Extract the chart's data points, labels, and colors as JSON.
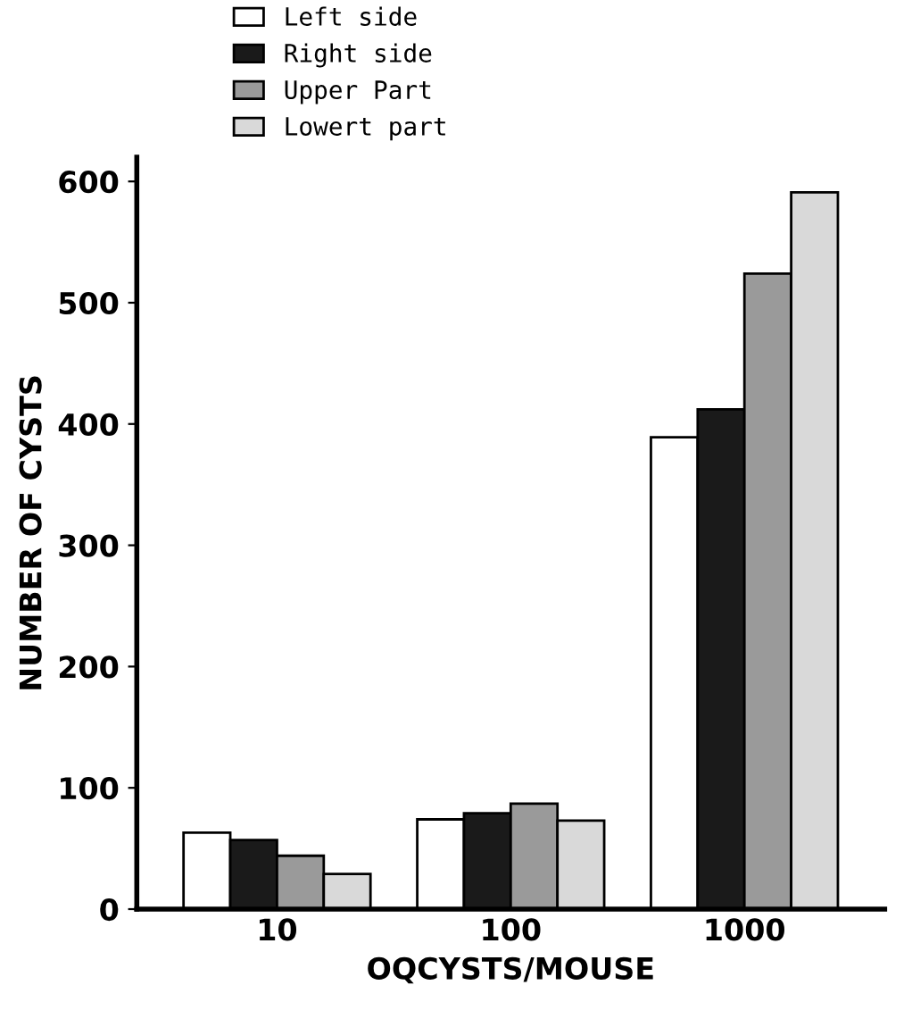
{
  "chart_data": {
    "type": "bar",
    "xlabel": "OQCYSTS/MOUSE",
    "ylabel": "NUMBER OF CYSTS",
    "categories": [
      "10",
      "100",
      "1000"
    ],
    "series": [
      {
        "name": "Left side",
        "color": "#ffffff",
        "values": [
          63,
          74,
          389
        ]
      },
      {
        "name": "Right side",
        "color": "#1a1a1a",
        "values": [
          57,
          79,
          412
        ]
      },
      {
        "name": "Upper Part",
        "color": "#9a9a9a",
        "values": [
          44,
          87,
          524
        ]
      },
      {
        "name": "Lowert part",
        "color": "#d9d9d9",
        "values": [
          29,
          73,
          591
        ]
      }
    ],
    "ylim": [
      0,
      620
    ],
    "yticks": [
      0,
      100,
      200,
      300,
      400,
      500,
      600
    ],
    "grid": false,
    "legend": "top left"
  }
}
